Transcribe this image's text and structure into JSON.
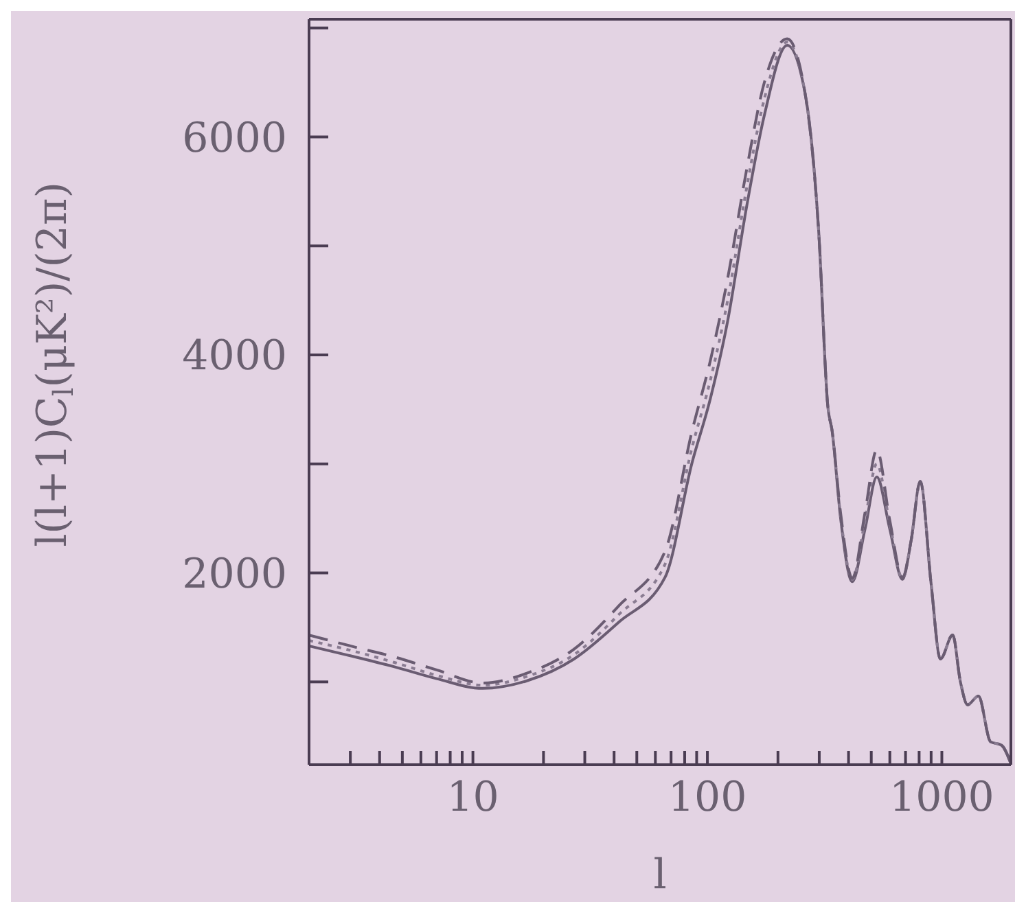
{
  "chart_data": {
    "type": "line",
    "xlabel": "l",
    "ylabel": "l(l+1)C$_{l}$(μK²)/(2π)",
    "log": "x",
    "grid": false,
    "legend": false,
    "marker": "none",
    "x": [
      2,
      3,
      4.6,
      7,
      11,
      17,
      27,
      42,
      66,
      86,
      103,
      122,
      147,
      175,
      219,
      261,
      298,
      327,
      340,
      370,
      415,
      470,
      528,
      600,
      679,
      740,
      809,
      900,
      986,
      1112,
      1200,
      1288,
      1432,
      1614,
      1795,
      1970
    ],
    "xlim": [
      2,
      1970
    ],
    "xticks": [
      {
        "value": 2,
        "label": null
      },
      {
        "value": 3,
        "label": null
      },
      {
        "value": 4,
        "label": null
      },
      {
        "value": 5,
        "label": null
      },
      {
        "value": 6,
        "label": null
      },
      {
        "value": 7,
        "label": null
      },
      {
        "value": 8,
        "label": null
      },
      {
        "value": 9,
        "label": null
      },
      10,
      {
        "value": 20,
        "label": null
      },
      {
        "value": 30,
        "label": null
      },
      {
        "value": 40,
        "label": null
      },
      {
        "value": 50,
        "label": null
      },
      {
        "value": 60,
        "label": null
      },
      {
        "value": 70,
        "label": null
      },
      {
        "value": 80,
        "label": null
      },
      {
        "value": 90,
        "label": null
      },
      100,
      {
        "value": 200,
        "label": null
      },
      {
        "value": 300,
        "label": null
      },
      {
        "value": 400,
        "label": null
      },
      {
        "value": 500,
        "label": null
      },
      {
        "value": 600,
        "label": null
      },
      {
        "value": 700,
        "label": null
      },
      {
        "value": 800,
        "label": null
      },
      {
        "value": 900,
        "label": null
      },
      1000
    ],
    "ylim": [
      240,
      7080
    ],
    "yticks": [
      {
        "value": 1000,
        "label": null
      },
      2000,
      {
        "value": 3000,
        "label": null
      },
      4000,
      {
        "value": 5000,
        "label": null
      },
      6000,
      {
        "value": 7000,
        "label": null
      }
    ],
    "series": [
      {
        "color": "#6a5c72",
        "line_style": "solid",
        "values": [
          1330,
          1240,
          1140,
          1030,
          940,
          1010,
          1210,
          1550,
          1960,
          3010,
          3600,
          4310,
          5360,
          6200,
          6840,
          6400,
          5150,
          3510,
          3310,
          2500,
          1920,
          2400,
          2880,
          2400,
          1940,
          2300,
          2840,
          1900,
          1210,
          1430,
          1000,
          790,
          870,
          450,
          420,
          250
        ]
      },
      {
        "color": "#8a7c92",
        "line_style": "dotted",
        "values": [
          1380,
          1290,
          1180,
          1060,
          970,
          1050,
          1250,
          1620,
          2080,
          3150,
          3770,
          4500,
          5530,
          6350,
          6870,
          6400,
          5150,
          3510,
          3310,
          2520,
          1940,
          2480,
          3000,
          2450,
          1950,
          2300,
          2840,
          1900,
          1210,
          1430,
          1000,
          790,
          870,
          450,
          420,
          250
        ]
      },
      {
        "color": "#6a5c72",
        "line_style": "dashed",
        "values": [
          1430,
          1330,
          1230,
          1110,
          990,
          1080,
          1300,
          1700,
          2200,
          3300,
          3950,
          4700,
          5700,
          6500,
          6900,
          6400,
          5150,
          3510,
          3310,
          2550,
          1950,
          2550,
          3130,
          2480,
          1960,
          2300,
          2840,
          1900,
          1210,
          1430,
          1000,
          790,
          870,
          450,
          420,
          250
        ]
      }
    ]
  }
}
